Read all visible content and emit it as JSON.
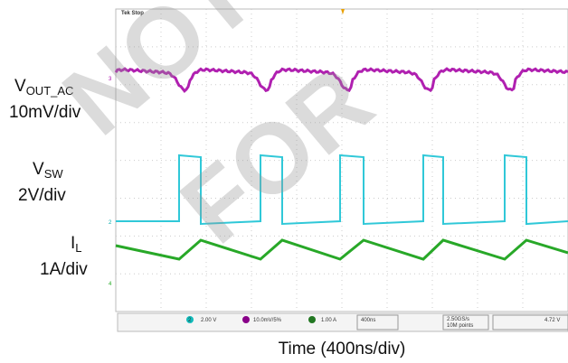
{
  "header": {
    "brand": "Tek Stop"
  },
  "channels": [
    {
      "symbol": "V",
      "subscript": "OUT_AC",
      "scale": "10mV/div"
    },
    {
      "symbol": "V",
      "subscript": "SW",
      "scale": "2V/div"
    },
    {
      "symbol": "I",
      "subscript": "L",
      "scale": "1A/div"
    }
  ],
  "status_bar": {
    "ch2": "2",
    "ch2_scale": "2.00 V",
    "ch3_scale": "10.0mV/5%",
    "ch4_scale": "1.00 A",
    "timebase": "400ns",
    "sample_rate": "2.50GS/s",
    "record": "10M points",
    "trigger_level": "4.72 V"
  },
  "x_label": "Time (400ns/div)",
  "watermark": [
    "NOT",
    "FOR"
  ]
}
